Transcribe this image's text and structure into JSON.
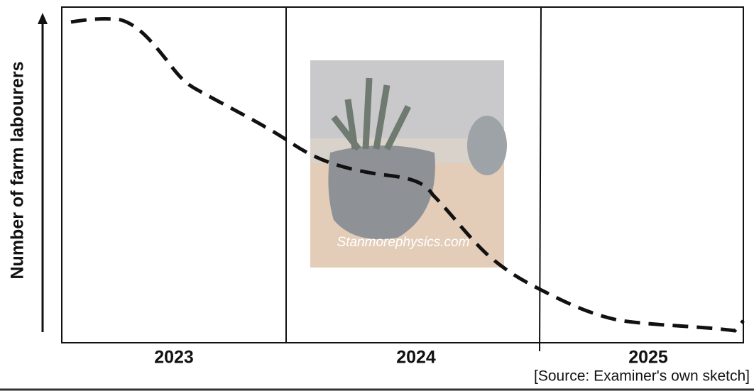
{
  "axis": {
    "y_label": "Number of farm labourers"
  },
  "categories": [
    "2023",
    "2024",
    "2025"
  ],
  "source": "[Source: Examiner's own sketch]",
  "watermark": "Stanmorephysics.com"
}
